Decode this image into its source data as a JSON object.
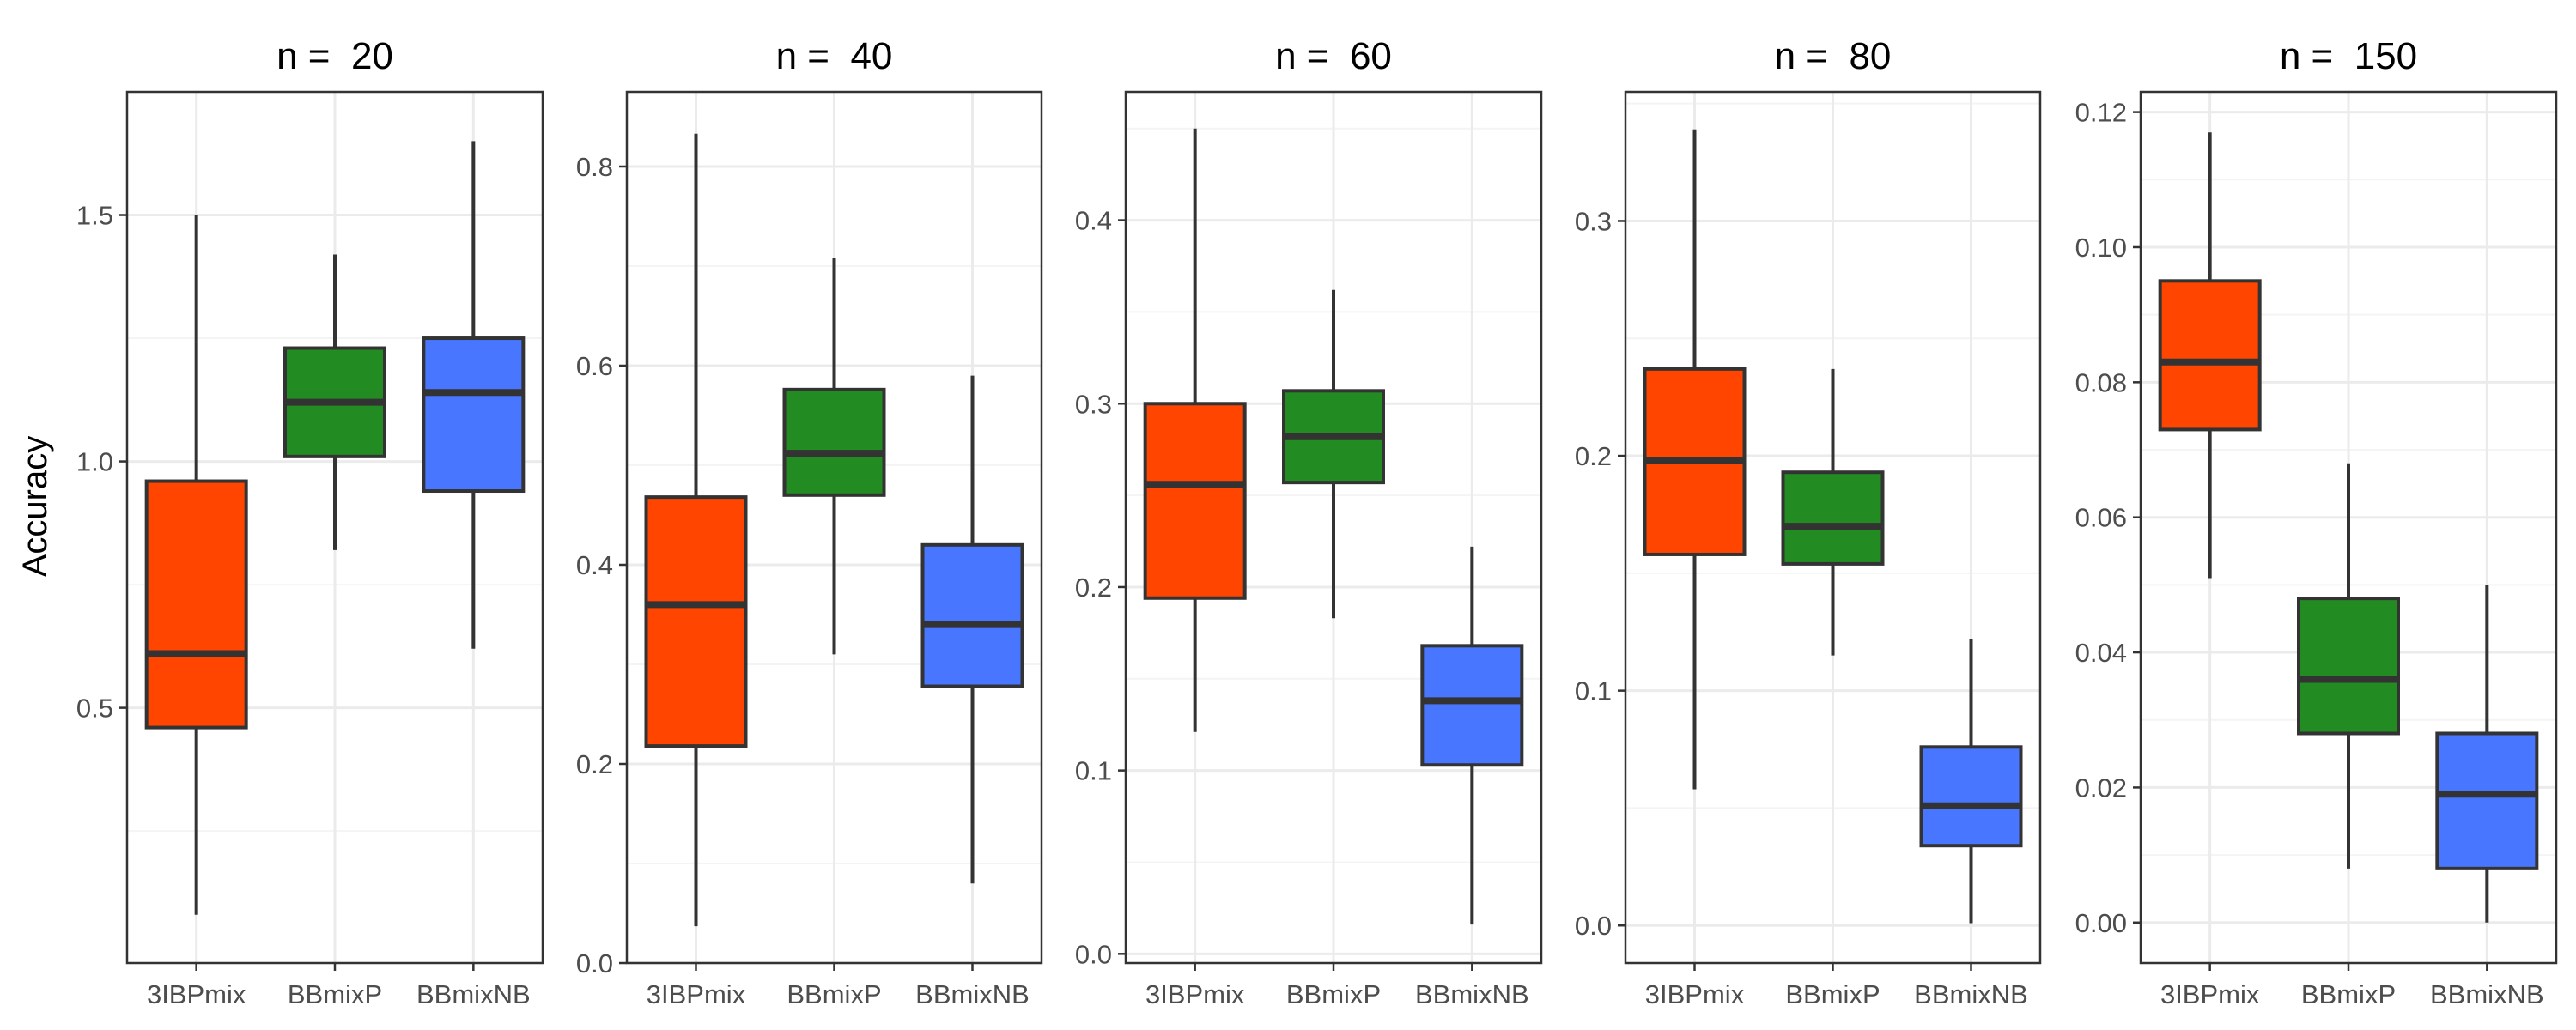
{
  "figure": {
    "ylabel": "Accuracy",
    "colors": {
      "3IBPmix": "#ff4500",
      "BBmixP": "#228b22",
      "BBmixNB": "#4876ff",
      "panel_border": "#333333",
      "grid_major": "#ebebeb",
      "grid_minor": "#f4f4f4",
      "box_line": "#333333",
      "whisker": "#333333",
      "tick_text": "#4d4d4d"
    }
  },
  "chart_data": [
    {
      "type": "box",
      "title": "n =  20",
      "categories": [
        "3IBPmix",
        "BBmixP",
        "BBmixNB"
      ],
      "ylim": [
        -0.018,
        1.75
      ],
      "yticks": [
        0.5,
        1.0,
        1.5
      ],
      "ytick_labels": [
        "0.5",
        "1.0",
        "1.5"
      ],
      "grid": true,
      "boxes": [
        {
          "name": "3IBPmix",
          "whisker_low": 0.08,
          "q1": 0.46,
          "median": 0.61,
          "q3": 0.96,
          "whisker_high": 1.5
        },
        {
          "name": "BBmixP",
          "whisker_low": 0.82,
          "q1": 1.01,
          "median": 1.12,
          "q3": 1.23,
          "whisker_high": 1.42
        },
        {
          "name": "BBmixNB",
          "whisker_low": 0.62,
          "q1": 0.94,
          "median": 1.14,
          "q3": 1.25,
          "whisker_high": 1.65
        }
      ]
    },
    {
      "type": "box",
      "title": "n =  40",
      "categories": [
        "3IBPmix",
        "BBmixP",
        "BBmixNB"
      ],
      "ylim": [
        0.0,
        0.875
      ],
      "yticks": [
        0.0,
        0.2,
        0.4,
        0.6,
        0.8
      ],
      "ytick_labels": [
        "0.0",
        "0.2",
        "0.4",
        "0.6",
        "0.8"
      ],
      "grid": true,
      "boxes": [
        {
          "name": "3IBPmix",
          "whisker_low": 0.037,
          "q1": 0.218,
          "median": 0.36,
          "q3": 0.468,
          "whisker_high": 0.833
        },
        {
          "name": "BBmixP",
          "whisker_low": 0.31,
          "q1": 0.47,
          "median": 0.512,
          "q3": 0.576,
          "whisker_high": 0.708
        },
        {
          "name": "BBmixNB",
          "whisker_low": 0.08,
          "q1": 0.278,
          "median": 0.34,
          "q3": 0.42,
          "whisker_high": 0.59
        }
      ]
    },
    {
      "type": "box",
      "title": "n =  60",
      "categories": [
        "3IBPmix",
        "BBmixP",
        "BBmixNB"
      ],
      "ylim": [
        -0.005,
        0.47
      ],
      "yticks": [
        0.0,
        0.1,
        0.2,
        0.3,
        0.4
      ],
      "ytick_labels": [
        "0.0",
        "0.1",
        "0.2",
        "0.3",
        "0.4"
      ],
      "grid": true,
      "boxes": [
        {
          "name": "3IBPmix",
          "whisker_low": 0.121,
          "q1": 0.194,
          "median": 0.256,
          "q3": 0.3,
          "whisker_high": 0.45
        },
        {
          "name": "BBmixP",
          "whisker_low": 0.183,
          "q1": 0.257,
          "median": 0.282,
          "q3": 0.307,
          "whisker_high": 0.362
        },
        {
          "name": "BBmixNB",
          "whisker_low": 0.016,
          "q1": 0.103,
          "median": 0.138,
          "q3": 0.168,
          "whisker_high": 0.222
        }
      ]
    },
    {
      "type": "box",
      "title": "n =  80",
      "categories": [
        "3IBPmix",
        "BBmixP",
        "BBmixNB"
      ],
      "ylim": [
        -0.016,
        0.355
      ],
      "yticks": [
        0.0,
        0.1,
        0.2,
        0.3
      ],
      "ytick_labels": [
        "0.0",
        "0.1",
        "0.2",
        "0.3"
      ],
      "grid": true,
      "boxes": [
        {
          "name": "3IBPmix",
          "whisker_low": 0.058,
          "q1": 0.158,
          "median": 0.198,
          "q3": 0.237,
          "whisker_high": 0.339
        },
        {
          "name": "BBmixP",
          "whisker_low": 0.115,
          "q1": 0.154,
          "median": 0.17,
          "q3": 0.193,
          "whisker_high": 0.237
        },
        {
          "name": "BBmixNB",
          "whisker_low": 0.001,
          "q1": 0.034,
          "median": 0.051,
          "q3": 0.076,
          "whisker_high": 0.122
        }
      ]
    },
    {
      "type": "box",
      "title": "n =  150",
      "categories": [
        "3IBPmix",
        "BBmixP",
        "BBmixNB"
      ],
      "ylim": [
        -0.006,
        0.123
      ],
      "yticks": [
        0.0,
        0.02,
        0.04,
        0.06,
        0.08,
        0.1,
        0.12
      ],
      "ytick_labels": [
        "0.00",
        "0.02",
        "0.04",
        "0.06",
        "0.08",
        "0.10",
        "0.12"
      ],
      "grid": true,
      "boxes": [
        {
          "name": "3IBPmix",
          "whisker_low": 0.051,
          "q1": 0.073,
          "median": 0.083,
          "q3": 0.095,
          "whisker_high": 0.117
        },
        {
          "name": "BBmixP",
          "whisker_low": 0.008,
          "q1": 0.028,
          "median": 0.036,
          "q3": 0.048,
          "whisker_high": 0.068
        },
        {
          "name": "BBmixNB",
          "whisker_low": 0.0,
          "q1": 0.008,
          "median": 0.019,
          "q3": 0.028,
          "whisker_high": 0.05
        }
      ]
    }
  ]
}
